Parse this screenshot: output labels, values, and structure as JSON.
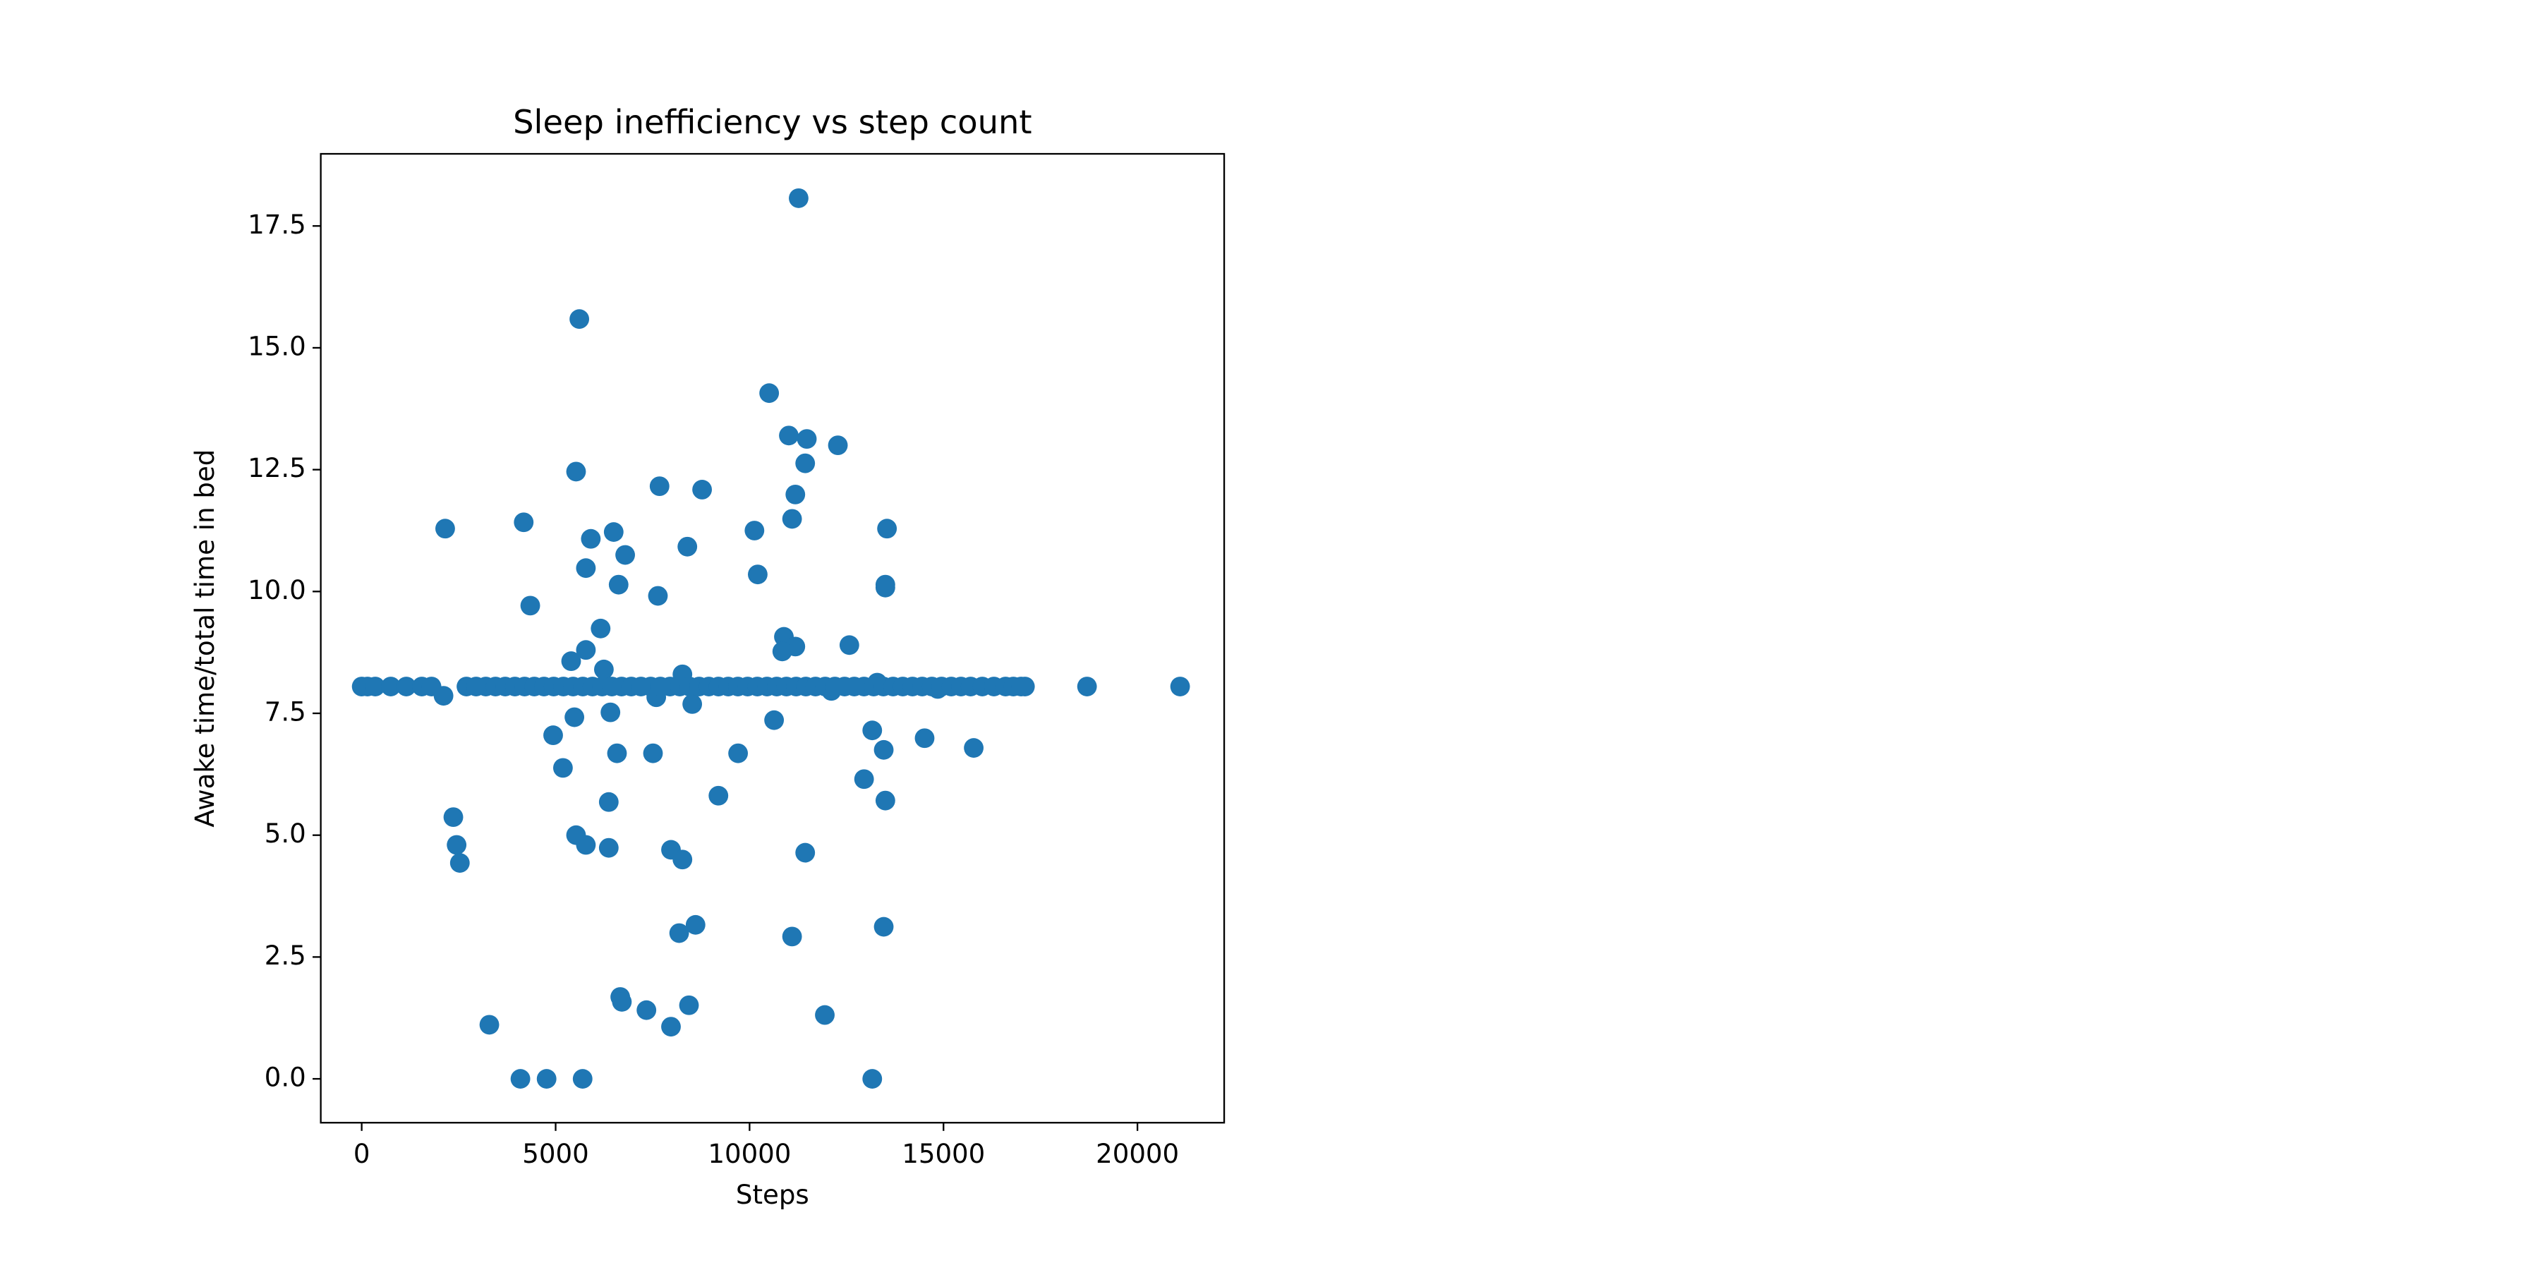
{
  "chart_data": {
    "type": "scatter",
    "title": "Sleep inefficiency vs step count",
    "x_label": "Steps",
    "y_label": "Awake time/total time in bed",
    "color": "#1f77b4",
    "x": [
      11265,
      5611,
      10505,
      11012,
      11476,
      12277,
      5527,
      7679,
      8776,
      11434,
      11180,
      2152,
      4177,
      6497,
      5907,
      10126,
      11096,
      13543,
      8396,
      6793,
      5780,
      10210,
      6624,
      13501,
      13501,
      4346,
      7637,
      6160,
      10885,
      11180,
      12573,
      10843,
      5780,
      5400,
      6244,
      8269,
      2110,
      13290,
      12109,
      14851,
      7594,
      8522,
      5484,
      6413,
      10632,
      13163,
      4936,
      9704,
      14513,
      6582,
      7510,
      13459,
      15779,
      5189,
      12952,
      9197,
      6370,
      13501,
      2363,
      5527,
      2447,
      5780,
      6370,
      7974,
      8269,
      11434,
      2531,
      8607,
      13459,
      8185,
      11096,
      3291,
      6666,
      6708,
      7341,
      8438,
      7974,
      11940,
      4092,
      4767,
      5696,
      13163,
      0,
      150,
      350,
      750,
      1150,
      1550,
      1800,
      2700,
      2950,
      3200,
      3450,
      3700,
      3950,
      4200,
      4450,
      4700,
      4950,
      5200,
      5450,
      5700,
      5950,
      6200,
      6450,
      6700,
      6950,
      7200,
      7450,
      7700,
      7950,
      8200,
      8450,
      8700,
      8950,
      9200,
      9450,
      9700,
      9950,
      10200,
      10450,
      10700,
      10950,
      11200,
      11450,
      11700,
      11950,
      12200,
      12450,
      12700,
      12950,
      13200,
      13450,
      13700,
      13950,
      14200,
      14450,
      14700,
      14950,
      15200,
      15450,
      15700,
      16000,
      16300,
      16600,
      16800,
      17000,
      17100,
      18700,
      21100
    ],
    "values": [
      18.07,
      15.59,
      14.07,
      13.2,
      13.13,
      13.0,
      12.46,
      12.16,
      12.09,
      12.63,
      11.99,
      11.29,
      11.42,
      11.22,
      11.08,
      11.25,
      11.49,
      11.29,
      10.92,
      10.75,
      10.48,
      10.35,
      10.14,
      10.14,
      10.08,
      9.71,
      9.91,
      9.24,
      9.07,
      8.87,
      8.9,
      8.77,
      8.8,
      8.57,
      8.4,
      8.3,
      7.86,
      8.13,
      7.96,
      8.0,
      7.83,
      7.69,
      7.42,
      7.52,
      7.36,
      7.15,
      7.05,
      6.68,
      6.99,
      6.68,
      6.68,
      6.75,
      6.79,
      6.38,
      6.15,
      5.81,
      5.68,
      5.71,
      5.37,
      5.0,
      4.8,
      4.8,
      4.74,
      4.7,
      4.5,
      4.64,
      4.43,
      3.16,
      3.12,
      2.99,
      2.92,
      1.11,
      1.68,
      1.58,
      1.41,
      1.51,
      1.07,
      1.31,
      0,
      0,
      0,
      0,
      8.05,
      8.05,
      8.05,
      8.05,
      8.05,
      8.05,
      8.05,
      8.05,
      8.05,
      8.05,
      8.05,
      8.05,
      8.05,
      8.05,
      8.05,
      8.05,
      8.05,
      8.05,
      8.05,
      8.05,
      8.05,
      8.05,
      8.05,
      8.05,
      8.05,
      8.05,
      8.05,
      8.05,
      8.05,
      8.05,
      8.05,
      8.05,
      8.05,
      8.05,
      8.05,
      8.05,
      8.05,
      8.05,
      8.05,
      8.05,
      8.05,
      8.05,
      8.05,
      8.05,
      8.05,
      8.05,
      8.05,
      8.05,
      8.05,
      8.05,
      8.05,
      8.05,
      8.05,
      8.05,
      8.05,
      8.05,
      8.05,
      8.05,
      8.05,
      8.05,
      8.05,
      8.05,
      8.05,
      8.05,
      8.05,
      8.05,
      8.05,
      8.05
    ],
    "xlim": [
      -1055,
      22236
    ],
    "ylim": [
      -0.9,
      18.98
    ],
    "xticks": [
      0,
      5000,
      10000,
      15000,
      20000
    ],
    "yticks": [
      {
        "value": 0,
        "label": "0.0"
      },
      2.5,
      {
        "value": 5,
        "label": "5.0"
      },
      7.5,
      {
        "value": 10,
        "label": "10.0"
      },
      12.5,
      {
        "value": 15,
        "label": "15.0"
      },
      17.5
    ]
  }
}
